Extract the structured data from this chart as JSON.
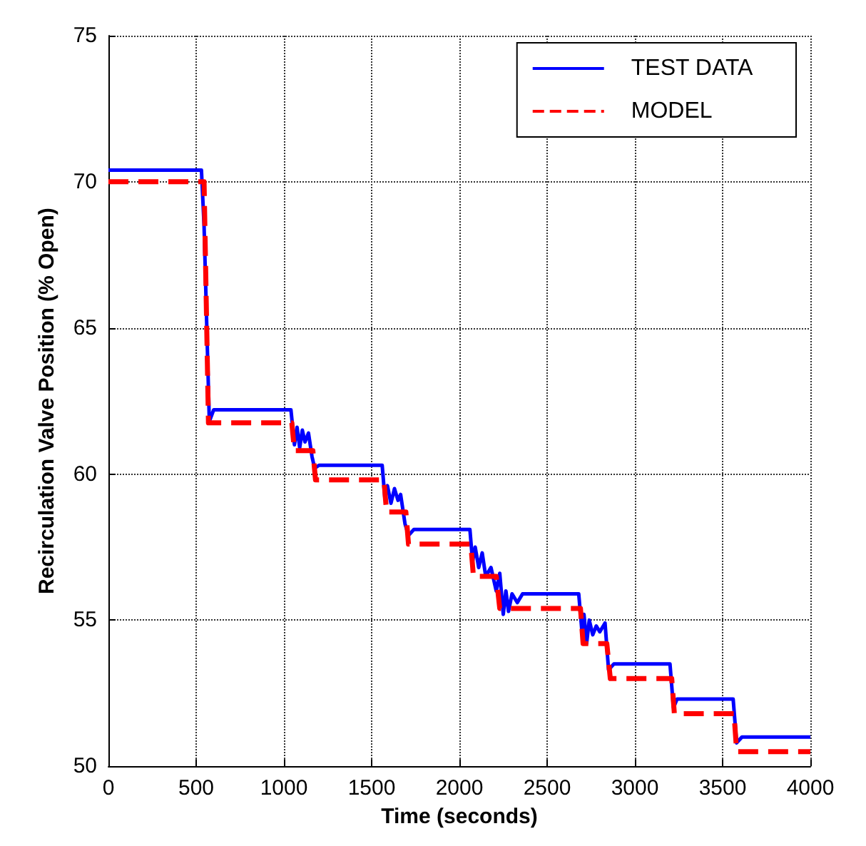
{
  "chart_data": {
    "type": "line",
    "xlabel": "Time (seconds)",
    "ylabel": "Recirculation Valve Position (% Open)",
    "xlim": [
      0,
      4000
    ],
    "xticks": [
      0,
      500,
      1000,
      1500,
      2000,
      2500,
      3000,
      3500,
      4000
    ],
    "ylim": [
      50,
      75
    ],
    "yticks": [
      50,
      55,
      60,
      65,
      70,
      75
    ],
    "grid": true,
    "legend": "top right",
    "series": [
      {
        "name": "TEST DATA",
        "color": "#0000ff",
        "line_style": "solid",
        "x": [
          0,
          530,
          545,
          575,
          600,
          1040,
          1060,
          1075,
          1090,
          1105,
          1120,
          1140,
          1160,
          1175,
          1200,
          1560,
          1575,
          1590,
          1610,
          1630,
          1650,
          1665,
          1690,
          1710,
          1740,
          2060,
          2075,
          2090,
          2110,
          2130,
          2150,
          2180,
          2210,
          2230,
          2250,
          2265,
          2280,
          2300,
          2330,
          2360,
          2680,
          2700,
          2710,
          2725,
          2740,
          2760,
          2780,
          2800,
          2830,
          2850,
          2880,
          3200,
          3220,
          3240,
          3560,
          3580,
          3610,
          4000
        ],
        "values": [
          70.4,
          70.4,
          68.5,
          61.8,
          62.2,
          62.2,
          61.0,
          61.6,
          60.9,
          61.5,
          61.1,
          61.4,
          60.6,
          60.2,
          60.3,
          60.3,
          59.2,
          59.6,
          59.0,
          59.5,
          59.1,
          59.3,
          58.3,
          57.9,
          58.1,
          58.1,
          57.0,
          57.5,
          56.8,
          57.3,
          56.5,
          56.8,
          56.0,
          56.6,
          55.2,
          56.0,
          55.3,
          55.9,
          55.6,
          55.9,
          55.9,
          54.5,
          55.2,
          54.2,
          55.0,
          54.5,
          54.8,
          54.6,
          54.9,
          53.3,
          53.5,
          53.5,
          52.0,
          52.3,
          52.3,
          50.8,
          51.0,
          51.0
        ]
      },
      {
        "name": "MODEL",
        "color": "#ff0000",
        "line_style": "dashed",
        "x": [
          0,
          545,
          570,
          1045,
          1060,
          1165,
          1180,
          1570,
          1585,
          1695,
          1710,
          2065,
          2080,
          2210,
          2230,
          2690,
          2705,
          2840,
          2860,
          3210,
          3225,
          3565,
          3580,
          4000
        ],
        "values": [
          70.0,
          70.0,
          61.75,
          61.75,
          60.8,
          60.8,
          59.8,
          59.8,
          58.7,
          58.7,
          57.6,
          57.6,
          56.5,
          56.5,
          55.4,
          55.4,
          54.2,
          54.2,
          53.0,
          53.0,
          51.8,
          51.8,
          50.5,
          50.5
        ]
      }
    ]
  }
}
